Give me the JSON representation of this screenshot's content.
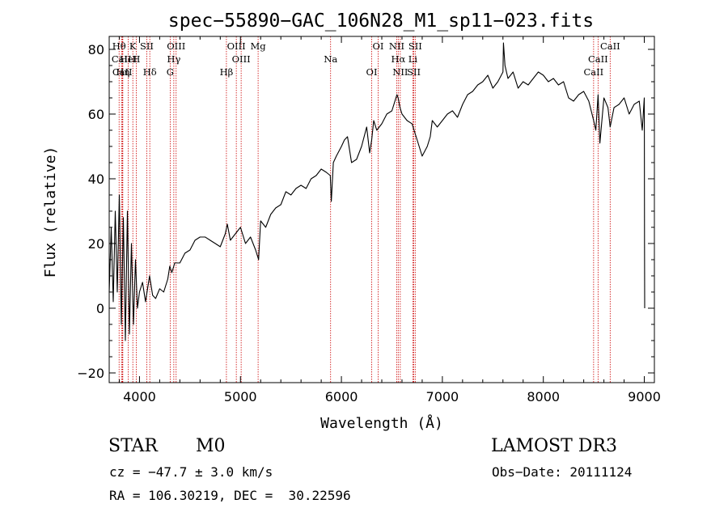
{
  "chart_data": {
    "type": "line",
    "title": "spec−55890−GAC_106N28_M1_sp11−023.fits",
    "xlabel": "Wavelength (Å)",
    "ylabel": "Flux (relative)",
    "xlim": [
      3700,
      9100
    ],
    "ylim": [
      -23,
      84
    ],
    "xticks": [
      {
        "value": 4000,
        "label": "4000"
      },
      {
        "value": 5000,
        "label": "5000"
      },
      {
        "value": 6000,
        "label": "6000"
      },
      {
        "value": 7000,
        "label": "7000"
      },
      {
        "value": 8000,
        "label": "8000"
      },
      {
        "value": 9000,
        "label": "9000"
      }
    ],
    "yticks": [
      {
        "value": -20,
        "label": "−20"
      },
      {
        "value": 0,
        "label": "0"
      },
      {
        "value": 20,
        "label": "20"
      },
      {
        "value": 40,
        "label": "40"
      },
      {
        "value": 60,
        "label": "60"
      },
      {
        "value": 80,
        "label": "80"
      }
    ],
    "series": [
      {
        "name": "flux",
        "x": [
          3700,
          3720,
          3740,
          3760,
          3780,
          3800,
          3820,
          3840,
          3860,
          3880,
          3900,
          3920,
          3940,
          3960,
          3980,
          4000,
          4030,
          4060,
          4100,
          4130,
          4160,
          4200,
          4240,
          4280,
          4300,
          4320,
          4350,
          4400,
          4450,
          4500,
          4550,
          4600,
          4650,
          4700,
          4750,
          4800,
          4850,
          4870,
          4900,
          4950,
          5000,
          5050,
          5100,
          5150,
          5180,
          5200,
          5250,
          5300,
          5350,
          5400,
          5450,
          5500,
          5550,
          5600,
          5650,
          5700,
          5750,
          5800,
          5850,
          5890,
          5900,
          5920,
          5950,
          6000,
          6030,
          6060,
          6100,
          6150,
          6200,
          6250,
          6280,
          6300,
          6320,
          6350,
          6400,
          6450,
          6500,
          6550,
          6562,
          6580,
          6600,
          6650,
          6700,
          6750,
          6800,
          6850,
          6880,
          6900,
          6950,
          7000,
          7050,
          7100,
          7150,
          7200,
          7250,
          7300,
          7350,
          7400,
          7450,
          7500,
          7550,
          7600,
          7605,
          7620,
          7650,
          7700,
          7750,
          7800,
          7850,
          7900,
          7950,
          8000,
          8050,
          8100,
          8150,
          8200,
          8250,
          8300,
          8350,
          8400,
          8450,
          8498,
          8520,
          8542,
          8560,
          8600,
          8640,
          8662,
          8700,
          8750,
          8800,
          8850,
          8900,
          8950,
          8980,
          9000,
          9001,
          9002,
          9004
        ],
        "y": [
          5,
          25,
          2,
          30,
          5,
          35,
          -5,
          28,
          -10,
          30,
          -8,
          20,
          -5,
          15,
          0,
          5,
          8,
          2,
          10,
          4,
          3,
          6,
          5,
          9,
          13,
          11,
          14,
          14,
          17,
          18,
          21,
          22,
          22,
          21,
          20,
          19,
          23,
          26,
          21,
          23,
          25,
          20,
          22,
          18,
          15,
          27,
          25,
          29,
          31,
          32,
          36,
          35,
          37,
          38,
          37,
          40,
          41,
          43,
          42,
          41,
          33,
          45,
          47,
          50,
          52,
          53,
          45,
          46,
          50,
          56,
          48,
          52,
          58,
          55,
          57,
          60,
          61,
          66,
          65,
          62,
          60,
          58,
          57,
          52,
          47,
          50,
          53,
          58,
          56,
          58,
          60,
          61,
          59,
          63,
          66,
          67,
          69,
          70,
          72,
          68,
          70,
          73,
          82,
          75,
          71,
          73,
          68,
          70,
          69,
          71,
          73,
          72,
          70,
          71,
          69,
          70,
          65,
          64,
          66,
          67,
          64,
          58,
          55,
          66,
          51,
          65,
          62,
          56,
          62,
          63,
          65,
          60,
          63,
          64,
          55,
          65,
          55,
          20,
          0
        ]
      }
    ],
    "line_markers": [
      {
        "name": "Hθ",
        "x": 3798
      },
      {
        "name": "CaII",
        "x": 3822
      },
      {
        "name": "CaII",
        "x": 3830
      },
      {
        "name": "K",
        "x": 3934
      },
      {
        "name": "HeI",
        "x": 3889
      },
      {
        "name": "Hη",
        "x": 3835
      },
      {
        "name": "SII",
        "x": 4072
      },
      {
        "name": "H",
        "x": 3968
      },
      {
        "name": "Hδ",
        "x": 4102
      },
      {
        "name": "OIII",
        "x": 4363
      },
      {
        "name": "Hγ",
        "x": 4340
      },
      {
        "name": "G",
        "x": 4304
      },
      {
        "name": "OIII",
        "x": 4959
      },
      {
        "name": "OIII",
        "x": 5007
      },
      {
        "name": "Hβ",
        "x": 4861
      },
      {
        "name": "Mg",
        "x": 5175
      },
      {
        "name": "Na",
        "x": 5893
      },
      {
        "name": "OI",
        "x": 6300
      },
      {
        "name": "OI",
        "x": 6364
      },
      {
        "name": "Hα",
        "x": 6563
      },
      {
        "name": "SII",
        "x": 6717
      },
      {
        "name": "NII",
        "x": 6548
      },
      {
        "name": "Li",
        "x": 6708
      },
      {
        "name": "NII",
        "x": 6583
      },
      {
        "name": "SII",
        "x": 6731
      },
      {
        "name": "CaII",
        "x": 8542
      },
      {
        "name": "CaII",
        "x": 8498
      },
      {
        "name": "CaII",
        "x": 8662
      }
    ]
  },
  "info": {
    "class": "STAR",
    "subclass": "M0",
    "survey": "LAMOST DR3",
    "redshift": "cz = −47.7 ± 3.0 km/s",
    "obs_date": "Obs−Date: 20111124",
    "coords": "RA = 106.30219, DEC =  30.22596"
  },
  "colors": {
    "axis": "#000000",
    "spectrum": "#000000",
    "marker_line": "#cc0000"
  }
}
